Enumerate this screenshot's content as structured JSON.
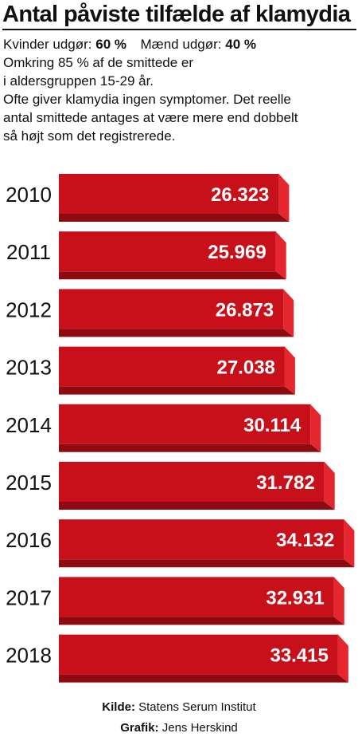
{
  "title": "Antal påviste tilfælde af klamydia",
  "intro": {
    "women_label": "Kvinder udgør:",
    "women_value": "60 %",
    "men_label": "Mænd udgør:",
    "men_value": "40 %",
    "line2": "Omkring 85 % af de smittede er",
    "line3": "i aldersgruppen 15-29 år.",
    "line4": "Ofte giver klamydia ingen symptomer. Det reelle",
    "line5": "antal smittede antages at være mere end dobbelt",
    "line6": "så højt som det registrerede."
  },
  "colors": {
    "bar_face": "#c8101a",
    "bar_side": "#e5262e",
    "bar_shadow": "#8c0a10",
    "value_text": "#ffffff"
  },
  "chart_data": {
    "type": "bar",
    "orientation": "horizontal",
    "categories": [
      "2010",
      "2011",
      "2012",
      "2013",
      "2014",
      "2015",
      "2016",
      "2017",
      "2018"
    ],
    "values": [
      26323,
      25969,
      26873,
      27038,
      30114,
      31782,
      34132,
      32931,
      33415
    ],
    "value_labels": [
      "26.323",
      "25.969",
      "26.873",
      "27.038",
      "30.114",
      "31.782",
      "34.132",
      "32.931",
      "33.415"
    ],
    "style": "3d"
  },
  "footer": {
    "source_label": "Kilde:",
    "source_value": "Statens Serum Institut",
    "graphic_label": "Grafik:",
    "graphic_value": "Jens Herskind"
  }
}
